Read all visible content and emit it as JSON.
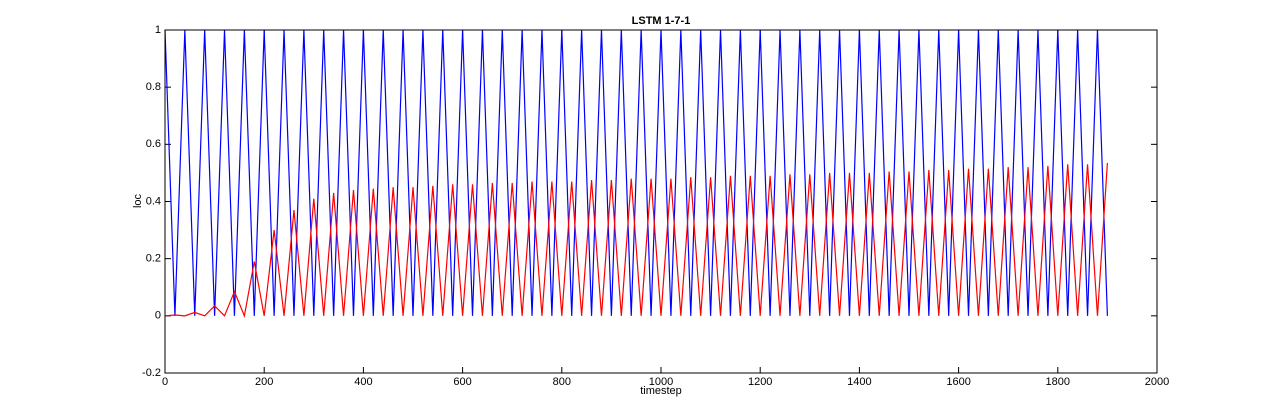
{
  "chart_data": {
    "type": "line",
    "title": "LSTM 1-7-1",
    "x_label": "timestep",
    "y_label": "loc",
    "x": [
      0,
      20,
      40,
      60,
      80,
      100,
      120,
      140,
      160,
      180,
      200,
      220,
      240,
      260,
      280,
      300,
      320,
      340,
      360,
      380,
      400,
      420,
      440,
      460,
      480,
      500,
      520,
      540,
      560,
      580,
      600,
      620,
      640,
      660,
      680,
      700,
      720,
      740,
      760,
      780,
      800,
      820,
      840,
      860,
      880,
      900,
      920,
      940,
      960,
      980,
      1000,
      1020,
      1040,
      1060,
      1080,
      1100,
      1120,
      1140,
      1160,
      1180,
      1200,
      1220,
      1240,
      1260,
      1280,
      1300,
      1320,
      1340,
      1360,
      1380,
      1400,
      1420,
      1440,
      1460,
      1480,
      1500,
      1520,
      1540,
      1560,
      1580,
      1600,
      1620,
      1640,
      1660,
      1680,
      1700,
      1720,
      1740,
      1760,
      1780,
      1800,
      1820,
      1840,
      1860,
      1880,
      1900
    ],
    "series": [
      {
        "color": "#0000ff",
        "values": [
          1,
          0,
          1,
          0,
          1,
          0,
          1,
          0,
          1,
          0,
          1,
          0,
          1,
          0,
          1,
          0,
          1,
          0,
          1,
          0,
          1,
          0,
          1,
          0,
          1,
          0,
          1,
          0,
          1,
          0,
          1,
          0,
          1,
          0,
          1,
          0,
          1,
          0,
          1,
          0,
          1,
          0,
          1,
          0,
          1,
          0,
          1,
          0,
          1,
          0,
          1,
          0,
          1,
          0,
          1,
          0,
          1,
          0,
          1,
          0,
          1,
          0,
          1,
          0,
          1,
          0,
          1,
          0,
          1,
          0,
          1,
          0,
          1,
          0,
          1,
          0,
          1,
          0,
          1,
          0,
          1,
          0,
          1,
          0,
          1,
          0,
          1,
          0,
          1,
          0,
          1,
          0,
          1,
          0,
          1,
          0
        ]
      },
      {
        "color": "#ff0000",
        "values": [
          0,
          0.003,
          0,
          0.012,
          0,
          0.035,
          0,
          0.085,
          0,
          0.19,
          0,
          0.3,
          0,
          0.37,
          0,
          0.41,
          0,
          0.43,
          0,
          0.44,
          0,
          0.445,
          0,
          0.45,
          0,
          0.45,
          0,
          0.455,
          0,
          0.46,
          0,
          0.46,
          0,
          0.465,
          0,
          0.465,
          0,
          0.47,
          0,
          0.47,
          0,
          0.47,
          0,
          0.475,
          0,
          0.475,
          0,
          0.48,
          0,
          0.48,
          0,
          0.48,
          0,
          0.485,
          0,
          0.485,
          0,
          0.49,
          0,
          0.49,
          0,
          0.49,
          0,
          0.495,
          0,
          0.495,
          0,
          0.5,
          0,
          0.5,
          0,
          0.5,
          0,
          0.505,
          0,
          0.505,
          0,
          0.51,
          0,
          0.51,
          0,
          0.515,
          0,
          0.515,
          0,
          0.52,
          0,
          0.52,
          0,
          0.525,
          0,
          0.53,
          0,
          0.53,
          0,
          0.535
        ]
      }
    ],
    "xlim": [
      0,
      2000
    ],
    "xticks": [
      0,
      200,
      400,
      600,
      800,
      1000,
      1200,
      1400,
      1600,
      1800,
      2000
    ],
    "ylim": [
      -0.2,
      1
    ],
    "yticks": [
      -0.2,
      0,
      0.2,
      0.4,
      0.6,
      0.8,
      1
    ]
  }
}
